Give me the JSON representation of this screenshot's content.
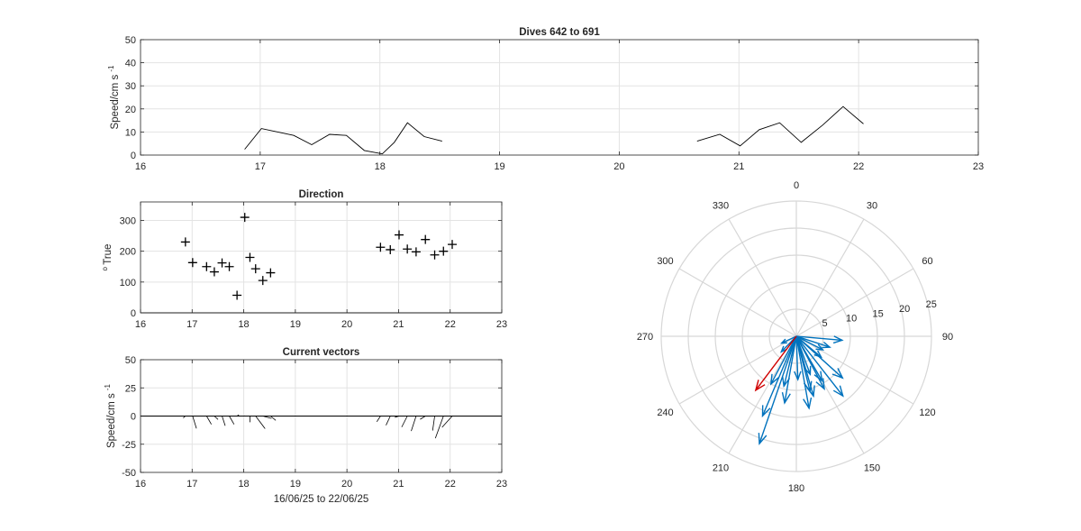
{
  "colors": {
    "axis": "#262626",
    "grid": "#e3e3e3",
    "line": "#000000",
    "vector_blue": "#0072bd",
    "vector_red": "#d00000",
    "polar_grid": "#d7d7d7"
  },
  "chart_data": [
    {
      "id": "speed",
      "type": "line",
      "title": "Dives 642 to 691",
      "ylabel": "Speed/cm s",
      "ylabel_sup": "-1",
      "xlim": [
        16,
        23
      ],
      "ylim": [
        0,
        50
      ],
      "xticks": [
        16,
        17,
        18,
        19,
        20,
        21,
        22,
        23
      ],
      "yticks": [
        0,
        10,
        20,
        30,
        40,
        50
      ],
      "grid": true,
      "segments": [
        {
          "x": [
            16.87,
            17.01,
            17.28,
            17.43,
            17.58,
            17.72,
            17.87,
            18.02,
            18.12,
            18.23,
            18.37,
            18.52
          ],
          "y": [
            2.5,
            11.5,
            8.5,
            4.5,
            9,
            8.5,
            2,
            0.5,
            5.5,
            14,
            8,
            6
          ]
        },
        {
          "x": [
            20.65,
            20.84,
            21.01,
            21.17,
            21.34,
            21.52,
            21.7,
            21.87,
            22.04
          ],
          "y": [
            6,
            9,
            4,
            11,
            14,
            5.5,
            13,
            21,
            13.5
          ]
        }
      ]
    },
    {
      "id": "direction",
      "type": "scatter",
      "title": "Direction",
      "ylabel": "True",
      "ylabel_pre": "o",
      "xlim": [
        16,
        23
      ],
      "ylim": [
        0,
        360
      ],
      "xticks": [
        16,
        17,
        18,
        19,
        20,
        21,
        22,
        23
      ],
      "yticks": [
        0,
        100,
        200,
        300
      ],
      "grid": true,
      "marker": "+",
      "x": [
        16.87,
        17.01,
        17.28,
        17.43,
        17.58,
        17.72,
        17.87,
        18.02,
        18.12,
        18.23,
        18.37,
        18.52,
        20.65,
        20.84,
        21.01,
        21.17,
        21.34,
        21.52,
        21.7,
        21.87,
        22.04
      ],
      "y": [
        230,
        163,
        150,
        133,
        162,
        150,
        57,
        310,
        180,
        143,
        105,
        130,
        213,
        205,
        253,
        207,
        198,
        238,
        188,
        200,
        222
      ]
    },
    {
      "id": "vectors",
      "type": "quiver",
      "title": "Current vectors",
      "ylabel": "Speed/cm s",
      "ylabel_sup": "-1",
      "xlabel": "16/06/25 to 22/06/25",
      "xlim": [
        16,
        23
      ],
      "ylim": [
        -50,
        50
      ],
      "xticks": [
        16,
        17,
        18,
        19,
        20,
        21,
        22,
        23
      ],
      "yticks": [
        -50,
        -25,
        0,
        25,
        50
      ],
      "grid": true,
      "x": [
        16.87,
        17.01,
        17.28,
        17.43,
        17.58,
        17.72,
        17.87,
        18.02,
        18.12,
        18.23,
        18.37,
        18.52,
        20.65,
        20.84,
        21.01,
        21.17,
        21.34,
        21.52,
        21.7,
        21.87,
        22.04
      ],
      "speed": [
        2.5,
        11.5,
        8.5,
        4.5,
        9,
        8.5,
        2,
        0.5,
        5.5,
        14,
        8,
        6,
        6,
        9,
        4,
        11,
        14,
        5.5,
        13,
        21,
        13.5
      ],
      "direction": [
        230,
        163,
        150,
        133,
        162,
        150,
        57,
        310,
        180,
        143,
        105,
        130,
        213,
        205,
        253,
        207,
        198,
        238,
        188,
        200,
        222
      ]
    },
    {
      "id": "polar",
      "type": "polar_vectors",
      "angle_ticks": [
        0,
        30,
        60,
        90,
        120,
        150,
        180,
        210,
        240,
        270,
        300,
        330
      ],
      "radial_ticks": [
        5,
        10,
        15,
        20,
        25
      ],
      "rmax": 25,
      "vectors": [
        {
          "angle": 95,
          "r": 8.5,
          "color": "blue"
        },
        {
          "angle": 108,
          "r": 6.5,
          "color": "blue"
        },
        {
          "angle": 117,
          "r": 5.5,
          "color": "blue"
        },
        {
          "angle": 130,
          "r": 6,
          "color": "blue"
        },
        {
          "angle": 132,
          "r": 11.5,
          "color": "blue"
        },
        {
          "angle": 142,
          "r": 14,
          "color": "blue"
        },
        {
          "angle": 150,
          "r": 9.5,
          "color": "blue"
        },
        {
          "angle": 152,
          "r": 11,
          "color": "blue"
        },
        {
          "angle": 160,
          "r": 7.5,
          "color": "blue"
        },
        {
          "angle": 164,
          "r": 11.5,
          "color": "blue"
        },
        {
          "angle": 166,
          "r": 10.5,
          "color": "blue"
        },
        {
          "angle": 170,
          "r": 13.5,
          "color": "blue"
        },
        {
          "angle": 178,
          "r": 8,
          "color": "blue"
        },
        {
          "angle": 190,
          "r": 12.5,
          "color": "blue"
        },
        {
          "angle": 194,
          "r": 9.5,
          "color": "blue"
        },
        {
          "angle": 199,
          "r": 21,
          "color": "blue"
        },
        {
          "angle": 203,
          "r": 16,
          "color": "blue"
        },
        {
          "angle": 208,
          "r": 10,
          "color": "blue"
        },
        {
          "angle": 224,
          "r": 4,
          "color": "blue"
        },
        {
          "angle": 245,
          "r": 3,
          "color": "blue"
        },
        {
          "angle": 217,
          "r": 12.5,
          "color": "red"
        }
      ]
    }
  ]
}
